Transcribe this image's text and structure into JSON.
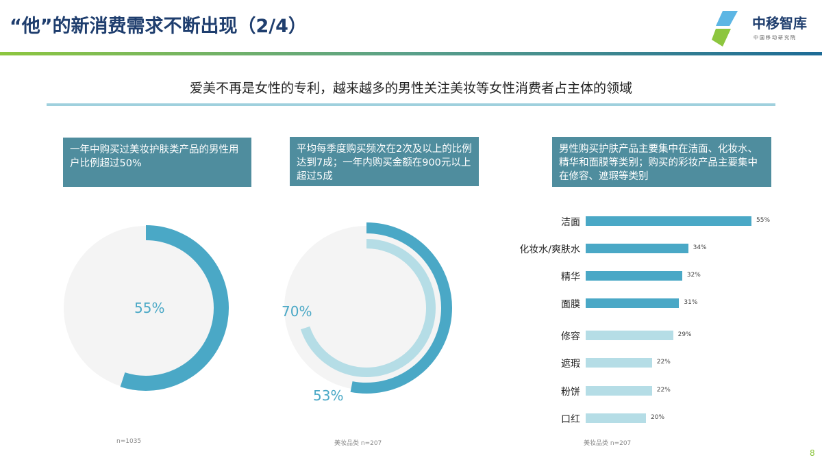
{
  "header": {
    "title": "“他”的新消费需求不断出现（2/4）",
    "logo_text": "中移智库",
    "logo_sub": "中国移动研究院"
  },
  "subtitle": "爱美不再是女性的专利，越来越多的男性关注美妆等女性消费者占主体的领域",
  "panels": [
    {
      "text": "一年中购买过美妆护肤类产品的男性用户比例超过50%",
      "note": "n=1035"
    },
    {
      "text": "平均每季度购买频次在2次及以上的比例达到7成；一年内购买金额在900元以上超过5成",
      "note": "美妆品类 n=207"
    },
    {
      "text": "男性购买护肤产品主要集中在洁面、化妆水、精华和面膜等类别；购买的彩妆产品主要集中在修容、遮瑕等类别",
      "note": "美妆品类 n=207"
    }
  ],
  "page_number": "8",
  "colors": {
    "dark": "#4aa8c6",
    "light": "#b5dde6",
    "track": "#f4f4f4"
  },
  "chart_data": [
    {
      "type": "pie",
      "subtype": "donut",
      "values": [
        55
      ],
      "labels": [
        "55%"
      ]
    },
    {
      "type": "pie",
      "subtype": "double-donut",
      "series": [
        {
          "name": "outer",
          "value": 53,
          "label": "53%"
        },
        {
          "name": "inner",
          "value": 70,
          "label": "70%"
        }
      ]
    },
    {
      "type": "bar",
      "orientation": "horizontal",
      "categories": [
        "洁面",
        "化妆水/爽肤水",
        "精华",
        "面膜",
        "修容",
        "遮瑕",
        "粉饼",
        "口红"
      ],
      "values": [
        55,
        34,
        32,
        31,
        29,
        22,
        22,
        20
      ],
      "labels": [
        "55%",
        "34%",
        "32%",
        "31%",
        "29%",
        "22%",
        "22%",
        "20%"
      ],
      "groups": [
        "skincare",
        "skincare",
        "skincare",
        "skincare",
        "makeup",
        "makeup",
        "makeup",
        "makeup"
      ]
    }
  ]
}
